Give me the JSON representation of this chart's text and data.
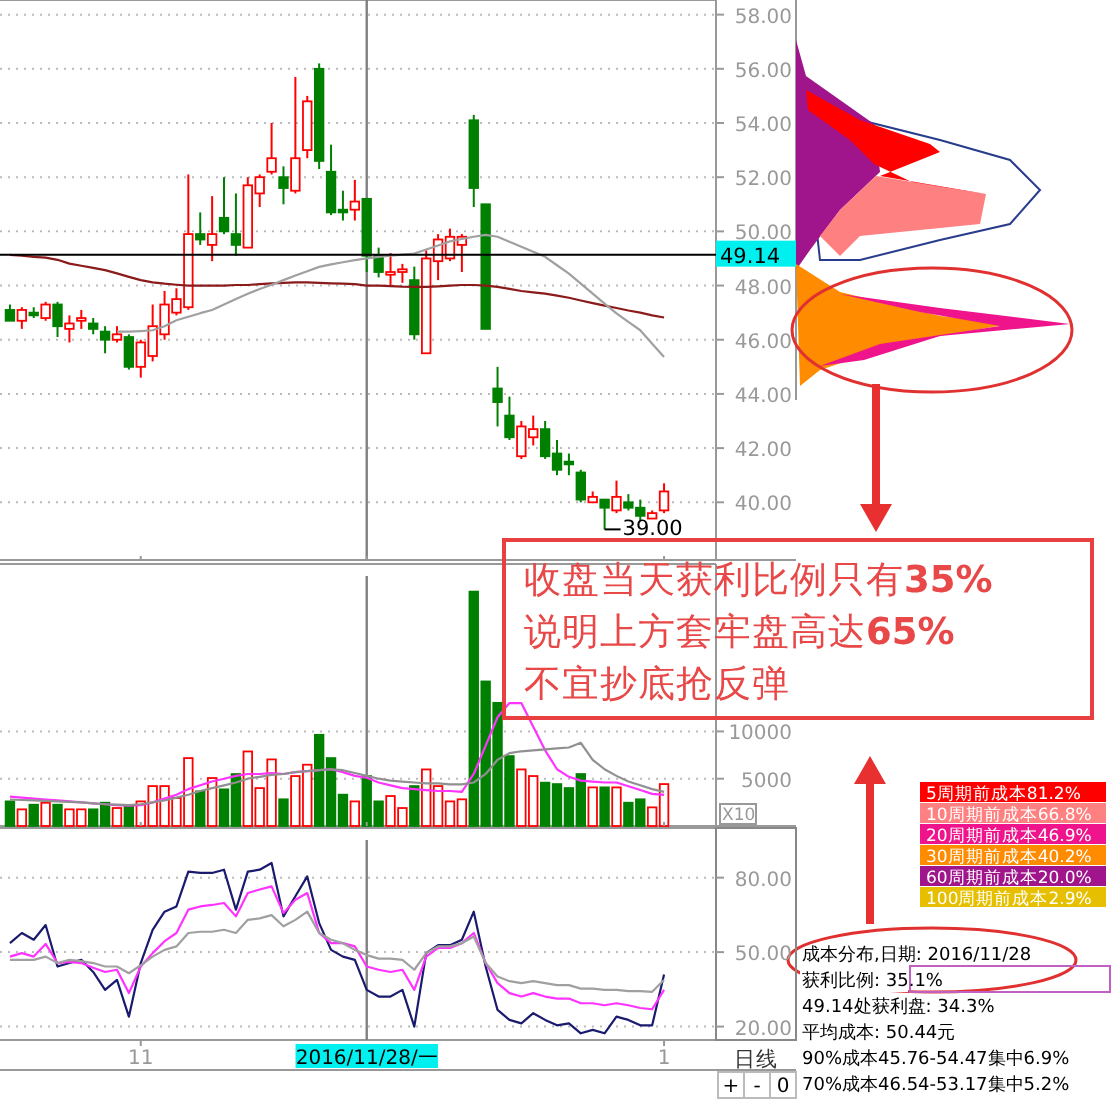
{
  "chart_data": [
    {
      "type": "candlestick",
      "categories": [
        null,
        null,
        null,
        null,
        null,
        null,
        null,
        null,
        null,
        null,
        null,
        "11",
        null,
        null,
        null,
        null,
        null,
        null,
        null,
        null,
        null,
        null,
        null,
        null,
        null,
        null,
        null,
        null,
        null,
        null,
        "2016/11/28/一",
        null,
        null,
        null,
        null,
        null,
        null,
        null,
        null,
        null,
        null,
        null,
        null,
        null,
        null,
        null,
        null,
        null,
        null,
        null,
        null,
        null,
        null,
        null,
        null,
        "1"
      ],
      "tick_labels": "y",
      "ylim": [
        37.87,
        58.54
      ],
      "yticks": [
        {
          "value": 40,
          "label": "40.00"
        },
        {
          "value": 42,
          "label": "42.00"
        },
        {
          "value": 44,
          "label": "44.00"
        },
        {
          "value": 46,
          "label": "46.00"
        },
        {
          "value": 48,
          "label": "48.00"
        },
        {
          "value": 50,
          "label": "50.00"
        },
        {
          "value": 52,
          "label": "52.00"
        },
        {
          "value": 54,
          "label": "54.00"
        },
        {
          "value": 56,
          "label": "56.00"
        },
        {
          "value": 58,
          "label": "58.00"
        }
      ],
      "grid": "y",
      "ohlc": [
        [
          47.1,
          47.3,
          46.7,
          46.7
        ],
        [
          46.7,
          47.2,
          46.4,
          47.1
        ],
        [
          47.0,
          47.2,
          46.8,
          46.9
        ],
        [
          46.8,
          47.4,
          46.7,
          47.3
        ],
        [
          47.3,
          47.4,
          46.1,
          46.5
        ],
        [
          46.4,
          46.9,
          45.9,
          46.6
        ],
        [
          46.7,
          47.1,
          46.4,
          46.8
        ],
        [
          46.6,
          46.8,
          46.2,
          46.4
        ],
        [
          46.3,
          46.5,
          45.5,
          46.0
        ],
        [
          46.0,
          46.5,
          45.9,
          46.2
        ],
        [
          46.1,
          46.2,
          44.9,
          45.0
        ],
        [
          45.0,
          46.0,
          44.6,
          45.9
        ],
        [
          45.4,
          47.3,
          45.2,
          46.5
        ],
        [
          46.2,
          47.8,
          46.0,
          47.3
        ],
        [
          47.0,
          47.9,
          46.9,
          47.5
        ],
        [
          47.2,
          52.1,
          47.1,
          49.9
        ],
        [
          49.9,
          50.7,
          49.5,
          49.7
        ],
        [
          49.5,
          51.3,
          48.9,
          49.9
        ],
        [
          50.5,
          52.0,
          49.9,
          50.0
        ],
        [
          49.9,
          51.4,
          49.1,
          49.5
        ],
        [
          49.4,
          52.0,
          49.4,
          51.7
        ],
        [
          51.4,
          52.1,
          50.9,
          52.0
        ],
        [
          52.2,
          54.0,
          52.1,
          52.7
        ],
        [
          52.0,
          52.4,
          51.0,
          51.6
        ],
        [
          51.5,
          55.7,
          51.4,
          52.7
        ],
        [
          53.0,
          55.0,
          52.7,
          54.8
        ],
        [
          56.0,
          56.2,
          52.3,
          52.6
        ],
        [
          52.2,
          53.2,
          50.6,
          50.7
        ],
        [
          50.8,
          51.5,
          50.4,
          50.7
        ],
        [
          50.8,
          51.9,
          50.4,
          51.1
        ],
        [
          51.2,
          51.2,
          48.5,
          49.1
        ],
        [
          49.1,
          49.4,
          48.3,
          48.5
        ],
        [
          48.4,
          49.2,
          48.0,
          48.5
        ],
        [
          48.5,
          48.8,
          48.1,
          48.6
        ],
        [
          48.2,
          48.7,
          46.0,
          46.2
        ],
        [
          45.5,
          49.3,
          45.5,
          49.0
        ],
        [
          48.9,
          49.9,
          48.2,
          49.7
        ],
        [
          49.0,
          50.1,
          48.9,
          49.8
        ],
        [
          49.5,
          49.9,
          48.5,
          49.8
        ],
        [
          54.1,
          54.3,
          50.9,
          51.6
        ],
        [
          51.0,
          51.0,
          46.4,
          46.4
        ],
        [
          44.2,
          45.0,
          42.8,
          43.7
        ],
        [
          43.2,
          43.9,
          42.3,
          42.4
        ],
        [
          41.7,
          43.0,
          41.6,
          42.8
        ],
        [
          42.4,
          43.2,
          42.1,
          42.7
        ],
        [
          42.7,
          43.0,
          41.6,
          41.7
        ],
        [
          41.8,
          42.3,
          41.0,
          41.2
        ],
        [
          41.5,
          41.8,
          41.0,
          41.4
        ],
        [
          41.1,
          41.2,
          40.0,
          40.1
        ],
        [
          40.0,
          40.4,
          40.0,
          40.2
        ],
        [
          40.1,
          40.1,
          39.0,
          39.8
        ],
        [
          39.7,
          40.8,
          39.6,
          40.2
        ],
        [
          40.0,
          40.3,
          39.7,
          39.8
        ],
        [
          39.8,
          40.1,
          39.3,
          39.5
        ],
        [
          39.4,
          39.7,
          39.4,
          39.6
        ],
        [
          39.7,
          40.7,
          39.6,
          40.4
        ]
      ],
      "series": [
        {
          "type": "line",
          "color": "#8b1a1a",
          "values": [
            49.13,
            49.1,
            49.06,
            49.03,
            48.95,
            48.81,
            48.73,
            48.65,
            48.57,
            48.45,
            48.32,
            48.2,
            48.12,
            48.07,
            48.03,
            48.0,
            48.0,
            48.0,
            48.0,
            48.02,
            48.02,
            48.05,
            48.08,
            48.1,
            48.12,
            48.12,
            48.1,
            48.08,
            48.07,
            48.05,
            48.0,
            48.0,
            47.98,
            47.96,
            47.95,
            47.95,
            47.97,
            48.0,
            48.02,
            48.02,
            48.0,
            47.95,
            47.88,
            47.8,
            47.75,
            47.7,
            47.63,
            47.55,
            47.45,
            47.35,
            47.26,
            47.17,
            47.08,
            47.0,
            46.9,
            46.82
          ]
        },
        {
          "type": "line",
          "color": "#a0a0a0",
          "values": [
            null,
            null,
            null,
            null,
            null,
            null,
            null,
            null,
            null,
            46.3,
            46.3,
            46.32,
            46.35,
            46.5,
            46.72,
            46.85,
            46.98,
            47.1,
            47.3,
            47.5,
            47.7,
            47.87,
            48.03,
            48.2,
            48.37,
            48.53,
            48.69,
            48.78,
            48.86,
            48.94,
            49.0,
            49.06,
            49.1,
            49.14,
            49.18,
            49.33,
            49.48,
            49.63,
            49.72,
            49.8,
            49.87,
            49.8,
            49.62,
            49.43,
            49.25,
            49.06,
            48.75,
            48.44,
            48.07,
            47.7,
            47.33,
            46.97,
            46.66,
            46.35,
            45.85,
            45.36
          ]
        }
      ],
      "ref_lines": [
        {
          "axis": "y",
          "value": 49.14,
          "label": "49.14",
          "color": "#000000"
        },
        {
          "axis": "x",
          "value": "2016/11/28/一",
          "color": "#808080"
        }
      ],
      "annotations": [
        "39.00"
      ]
    },
    {
      "type": "bar",
      "categories": [
        null,
        null,
        null,
        null,
        null,
        null,
        null,
        null,
        null,
        null,
        null,
        "11",
        null,
        null,
        null,
        null,
        null,
        null,
        null,
        null,
        null,
        null,
        null,
        null,
        null,
        null,
        null,
        null,
        null,
        null,
        "2016/11/28/一",
        null,
        null,
        null,
        null,
        null,
        null,
        null,
        null,
        null,
        null,
        null,
        null,
        null,
        null,
        null,
        null,
        null,
        null,
        null,
        null,
        null,
        null,
        null,
        null,
        "1"
      ],
      "tick_labels": "y",
      "ylim": [
        0,
        27700
      ],
      "yticks": [
        5000,
        10000
      ],
      "grid": "y",
      "series": [
        {
          "type": "bar",
          "color": "#ff0000",
          "colors": [
            "#008000",
            "#ff0000",
            "#008000",
            "#ff0000",
            "#008000",
            "#ff0000",
            "#ff0000",
            "#008000",
            "#008000",
            "#ff0000",
            "#008000",
            "#ff0000",
            "#ff0000",
            "#ff0000",
            "#ff0000",
            "#ff0000",
            "#008000",
            "#ff0000",
            "#008000",
            "#008000",
            "#ff0000",
            "#ff0000",
            "#ff0000",
            "#008000",
            "#ff0000",
            "#ff0000",
            "#008000",
            "#008000",
            "#008000",
            "#ff0000",
            "#008000",
            "#008000",
            "#ff0000",
            "#ff0000",
            "#008000",
            "#ff0000",
            "#ff0000",
            "#ff0000",
            "#ff0000",
            "#008000",
            "#008000",
            "#008000",
            "#008000",
            "#ff0000",
            "#ff0000",
            "#008000",
            "#008000",
            "#008000",
            "#008000",
            "#ff0000",
            "#008000",
            "#ff0000",
            "#008000",
            "#008000",
            "#ff0000",
            "#ff0000"
          ],
          "values": [
            2600,
            1760,
            2250,
            2460,
            2250,
            1760,
            1760,
            1760,
            2460,
            1900,
            2110,
            2600,
            4220,
            4220,
            2960,
            7180,
            3660,
            5070,
            3870,
            5490,
            7880,
            4010,
            7040,
            2820,
            5280,
            6480,
            9640,
            7180,
            3310,
            2600,
            5280,
            2600,
            3170,
            1900,
            4220,
            5980,
            4220,
            2600,
            2820,
            24780,
            15280,
            13020,
            7390,
            5980,
            5280,
            4580,
            4430,
            4010,
            5490,
            4080,
            4080,
            4080,
            2460,
            2820,
            1970,
            4430
          ]
        },
        {
          "type": "line",
          "color": "#ff33ff",
          "values": [
            3100,
            3000,
            2900,
            2800,
            2700,
            2600,
            2500,
            2400,
            2300,
            2200,
            2150,
            2200,
            2500,
            2900,
            3300,
            3900,
            4300,
            4700,
            5000,
            5300,
            5500,
            5500,
            5600,
            5500,
            5700,
            5800,
            5900,
            6000,
            5700,
            5300,
            5100,
            4600,
            4300,
            4000,
            3900,
            3800,
            3700,
            3700,
            3600,
            5500,
            8500,
            11500,
            13000,
            13000,
            10500,
            8000,
            6000,
            5200,
            4800,
            4700,
            4600,
            4600,
            4200,
            3800,
            3400,
            3300
          ]
        },
        {
          "type": "line",
          "color": "#909090",
          "values": [
            2800,
            2750,
            2700,
            2650,
            2600,
            2550,
            2500,
            2400,
            2300,
            2250,
            2200,
            2300,
            2500,
            2700,
            3000,
            3300,
            3700,
            4000,
            4300,
            4600,
            5000,
            5200,
            5400,
            5500,
            5700,
            5800,
            5900,
            6000,
            5900,
            5600,
            5300,
            5000,
            4800,
            4700,
            4600,
            4500,
            4500,
            4400,
            4400,
            4600,
            5500,
            7000,
            7700,
            7900,
            8000,
            8100,
            8200,
            8300,
            8800,
            7000,
            6000,
            5300,
            4700,
            4300,
            3900,
            3600
          ]
        }
      ],
      "ref_lines": [
        {
          "axis": "x",
          "value": "2016/11/28/一",
          "color": "#808080"
        }
      ],
      "annotations": [
        "X10"
      ]
    },
    {
      "type": "line",
      "categories": [
        null,
        null,
        null,
        null,
        null,
        null,
        null,
        null,
        null,
        null,
        null,
        "11",
        null,
        null,
        null,
        null,
        null,
        null,
        null,
        null,
        null,
        null,
        null,
        null,
        null,
        null,
        null,
        null,
        null,
        null,
        "2016/11/28/一",
        null,
        null,
        null,
        null,
        null,
        null,
        null,
        null,
        null,
        null,
        null,
        null,
        null,
        null,
        null,
        null,
        null,
        null,
        null,
        null,
        null,
        null,
        null,
        null,
        "1"
      ],
      "ylim": [
        14.6,
        100
      ],
      "yticks": [
        {
          "value": 20,
          "label": "20.00"
        },
        {
          "value": 50,
          "label": "50.00"
        },
        {
          "value": 80,
          "label": "80.00"
        }
      ],
      "grid": "y",
      "series": [
        {
          "color": "#1a1a6e",
          "values": [
            53.6,
            57.7,
            55,
            60.9,
            44.2,
            45.6,
            46.9,
            42,
            34.8,
            38.8,
            24,
            45.6,
            59,
            66.3,
            68.4,
            82.4,
            81.9,
            81.9,
            83.2,
            67.1,
            82.4,
            83.2,
            85.9,
            64.4,
            72.5,
            80.5,
            61.7,
            50.9,
            48.2,
            46.9,
            34.8,
            32.1,
            32.1,
            34.8,
            20,
            49.6,
            52.8,
            52.8,
            55,
            66.3,
            44.2,
            26.7,
            22.7,
            21.3,
            25.4,
            22.7,
            20.5,
            21.3,
            17.3,
            18.7,
            17.3,
            24,
            22.7,
            20.5,
            20.5,
            41
          ]
        },
        {
          "color": "#ff33ff",
          "values": [
            48.2,
            49.6,
            48.2,
            53.3,
            45.6,
            46.1,
            45.6,
            43.7,
            42,
            42.9,
            33.5,
            44.2,
            49.6,
            54.4,
            57.7,
            67.1,
            68.4,
            69,
            69.8,
            64.4,
            73.8,
            75.2,
            76.5,
            65.7,
            71.1,
            73.8,
            57.7,
            53.6,
            53.6,
            52.3,
            44.2,
            42.9,
            42,
            42.9,
            34.8,
            48.2,
            51.7,
            51.7,
            53.6,
            57.7,
            45.6,
            37.5,
            33.5,
            32.1,
            33.5,
            32.1,
            31.3,
            31.3,
            29.4,
            29.4,
            28.6,
            29.4,
            28.6,
            27.5,
            27,
            34.8
          ]
        },
        {
          "color": "#a0a0a0",
          "values": [
            46.9,
            46.9,
            46.9,
            48.2,
            45.6,
            46.9,
            46.4,
            45.6,
            44.2,
            44.2,
            41.5,
            44.7,
            48.2,
            50.9,
            52.3,
            57.7,
            58.2,
            58.2,
            59,
            57.7,
            63,
            63.6,
            64.9,
            60.4,
            63,
            66.3,
            57.7,
            55,
            53.6,
            50.9,
            48.8,
            47.4,
            47.4,
            46.9,
            42.9,
            49.6,
            52.3,
            52.3,
            53.6,
            56.3,
            45.6,
            40.2,
            38.3,
            37.5,
            38.3,
            37.5,
            36.7,
            36.7,
            35.3,
            35.3,
            34.8,
            34.8,
            34.3,
            34.3,
            34,
            38.8
          ]
        }
      ],
      "ref_lines": [
        {
          "axis": "x",
          "value": "2016/11/28/一",
          "color": "#808080"
        }
      ],
      "annotations": [
        "日线",
        "+",
        "-",
        "0"
      ]
    },
    {
      "type": "other",
      "annotations": [
        "收盘当天获利比例只有35%",
        "说明上方套牢盘高达65%",
        "不宜抄底抢反弹"
      ]
    },
    {
      "type": "other",
      "categories": [
        "5周期前成本81.2%",
        "10周期前成本66.8%",
        "20周期前成本46.9%",
        "30周期前成本40.2%",
        "60周期前成本20.0%",
        "100周期前成本2.9%"
      ],
      "colors": [
        "#ff0000",
        "#ff8080",
        "#f0148c",
        "#ff8c00",
        "#a0148c",
        "#e6c000"
      ]
    },
    {
      "type": "other",
      "annotations": [
        "成本分布,日期: 2016/11/28",
        "获利比例: 35.1%",
        "49.14处获利盘: 34.3%",
        "平均成本: 50.44元",
        "90%成本45.76-54.47集中6.9%",
        "70%成本46.54-53.17集中5.2%"
      ]
    }
  ]
}
